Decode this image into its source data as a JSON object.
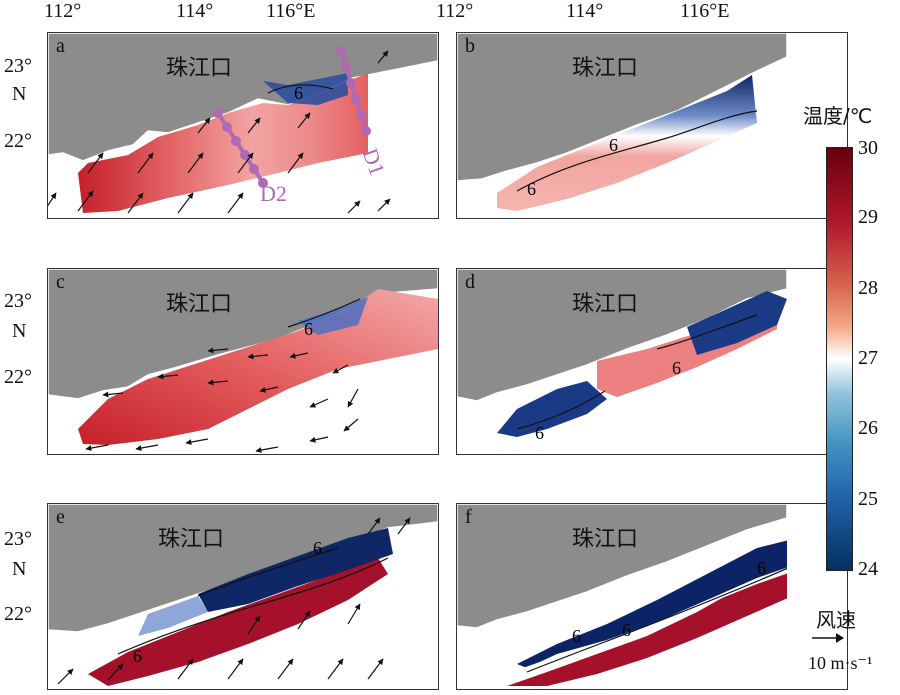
{
  "longitude_labels": [
    "112°",
    "114°",
    "116°E"
  ],
  "latitude_labels": {
    "23": "23°",
    "n": "N",
    "22": "22°"
  },
  "place_name": "珠江口",
  "panels": [
    {
      "id": "a",
      "label": "a",
      "contour_label": "6",
      "wind": "southwest"
    },
    {
      "id": "b",
      "label": "b",
      "contour_label": "6"
    },
    {
      "id": "c",
      "label": "c",
      "contour_label": "6",
      "wind": "east"
    },
    {
      "id": "d",
      "label": "d",
      "contour_label": "6"
    },
    {
      "id": "e",
      "label": "e",
      "contour_label": "6",
      "wind": "southwest"
    },
    {
      "id": "f",
      "label": "f",
      "contour_label": "6"
    }
  ],
  "sections": [
    {
      "label": "D1"
    },
    {
      "label": "D2"
    }
  ],
  "colorbar": {
    "title": "温度/℃",
    "ticks": [
      "30",
      "29",
      "28",
      "27",
      "26",
      "25",
      "24"
    ],
    "min": 24,
    "max": 30,
    "colors": {
      "high": "#67000d",
      "mid": "#ffffff",
      "low": "#053061"
    }
  },
  "wind_legend": {
    "title": "风速",
    "scale": "10 m·s⁻¹"
  },
  "colors": {
    "land": "#8c8c8c",
    "section": "#b06ab3"
  }
}
